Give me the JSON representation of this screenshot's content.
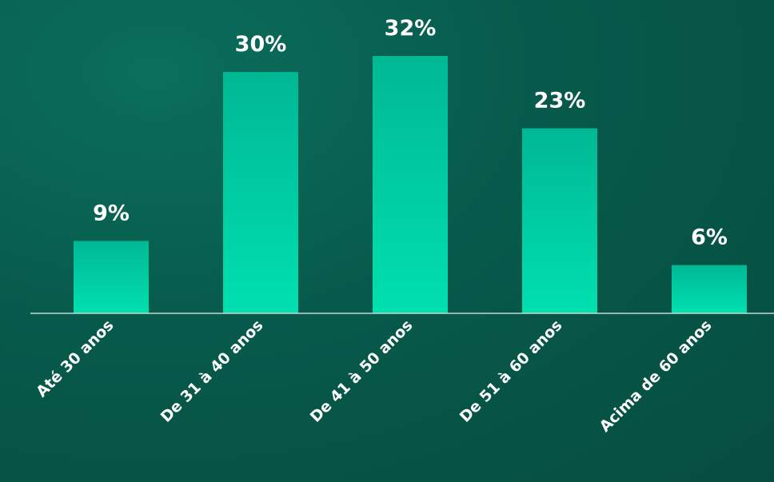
{
  "chart_data": {
    "type": "bar",
    "categories": [
      "Até 30 anos",
      "De 31 à 40 anos",
      "De 41 à 50 anos",
      "De 51 à 60 anos",
      "Acima de 60 anos"
    ],
    "values": [
      9,
      30,
      32,
      23,
      6
    ],
    "value_labels": [
      "9%",
      "30%",
      "32%",
      "23%",
      "6%"
    ],
    "ylim": [
      0,
      32
    ],
    "grid": false,
    "bar_color_top": "#00b894",
    "bar_color_bottom": "#00e0ae",
    "axis_color": "#c8d6d2"
  }
}
